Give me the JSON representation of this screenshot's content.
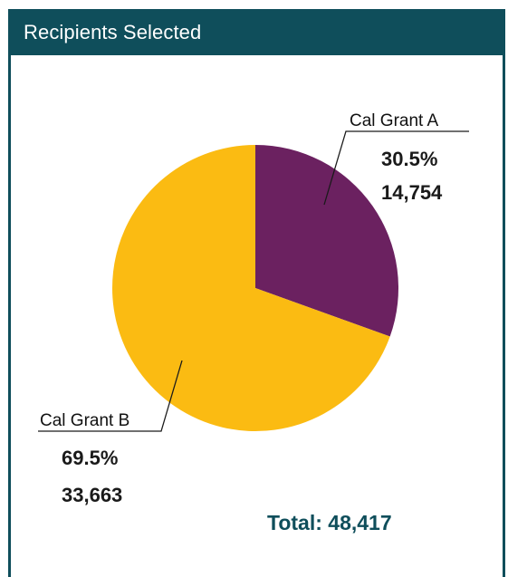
{
  "header": {
    "title": "Recipients Selected"
  },
  "chart_data": {
    "type": "pie",
    "slices": [
      {
        "name": "Cal Grant A",
        "percent": 30.5,
        "value": 14754,
        "percent_label": "30.5%",
        "value_label": "14,754",
        "color": "#6b2160"
      },
      {
        "name": "Cal Grant B",
        "percent": 69.5,
        "value": 33663,
        "percent_label": "69.5%",
        "value_label": "33,663",
        "color": "#fbbb12"
      }
    ],
    "total_label": "Total: 48,417",
    "total_color": "#0f4e5b"
  }
}
